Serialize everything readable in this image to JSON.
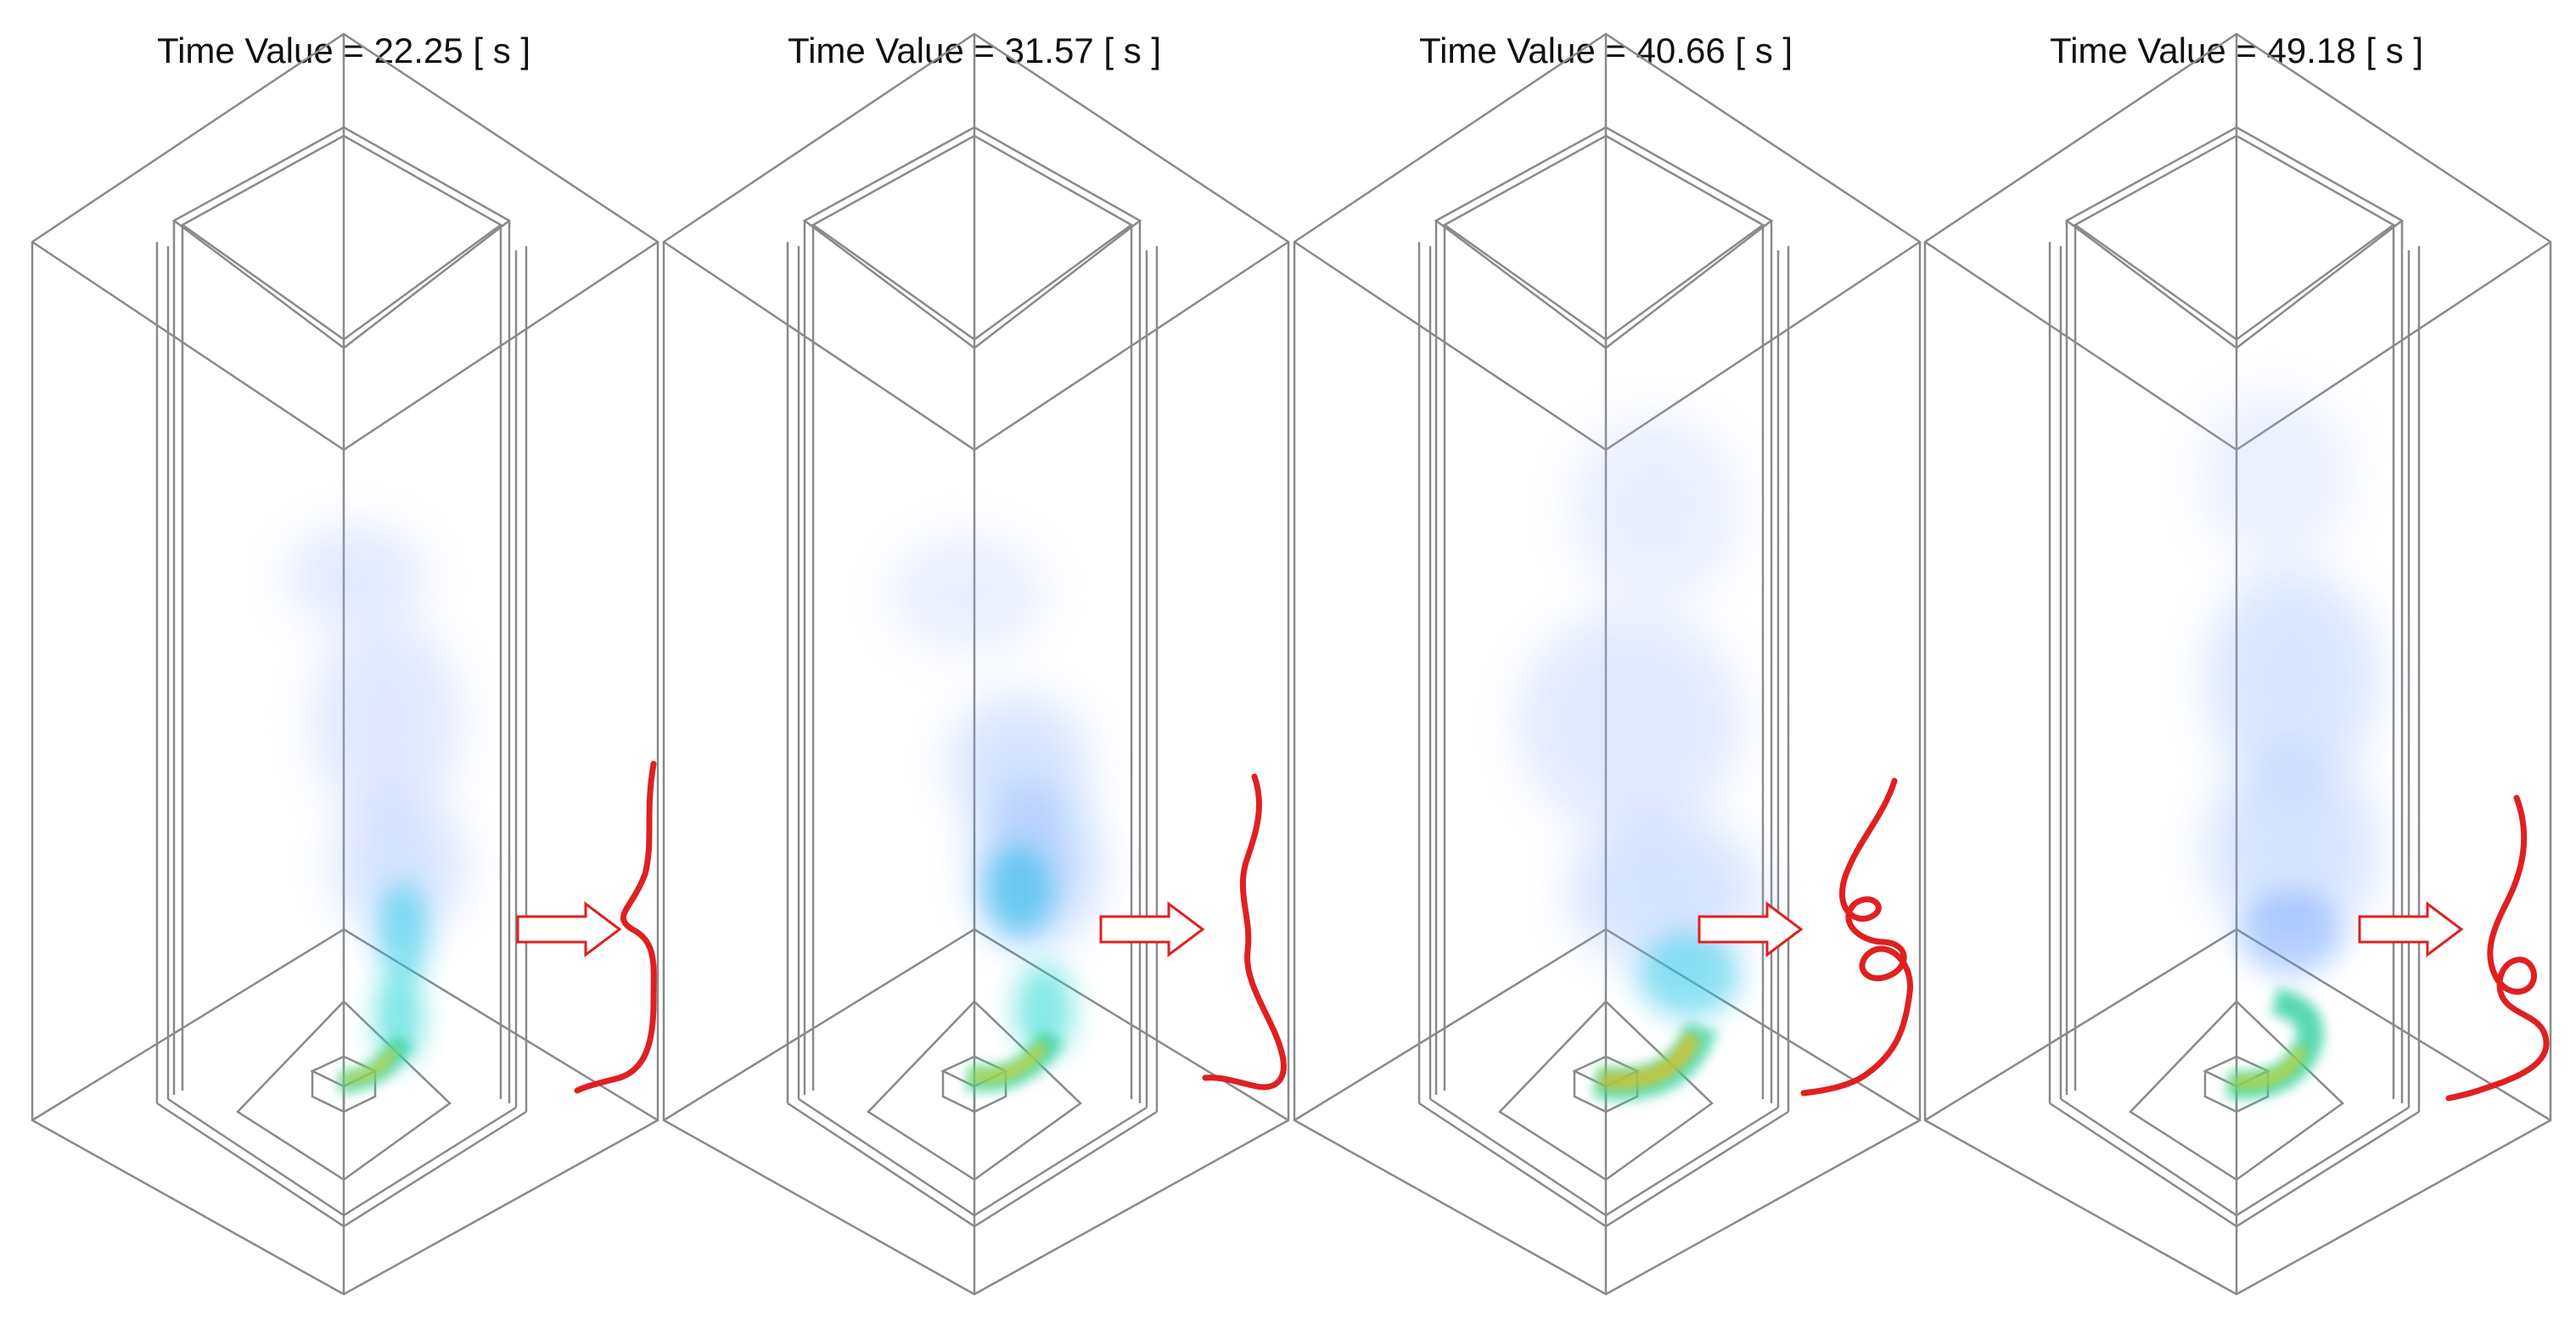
{
  "panels": [
    {
      "title": "Time Value = 22.25 [ s ]"
    },
    {
      "title": "Time Value = 31.57 [ s ]"
    },
    {
      "title": "Time Value = 40.66 [ s ]"
    },
    {
      "title": "Time Value = 49.18 [ s ]"
    }
  ],
  "colors": {
    "outline": "#8a8a8a",
    "arrow": "#e02020",
    "plume_light": "#9fb7ff",
    "plume_core": "#20c6e8",
    "fire": "#d8d020"
  },
  "icons": [
    "right-arrow-icon",
    "plume-trajectory-icon"
  ]
}
